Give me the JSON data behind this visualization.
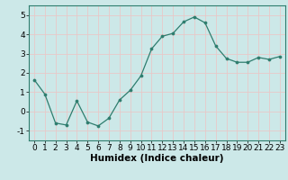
{
  "x": [
    0,
    1,
    2,
    3,
    4,
    5,
    6,
    7,
    8,
    9,
    10,
    11,
    12,
    13,
    14,
    15,
    16,
    17,
    18,
    19,
    20,
    21,
    22,
    23
  ],
  "y": [
    1.65,
    0.9,
    -0.6,
    -0.7,
    0.55,
    -0.55,
    -0.75,
    -0.35,
    0.6,
    1.1,
    1.85,
    3.25,
    3.9,
    4.05,
    4.65,
    4.9,
    4.6,
    3.4,
    2.75,
    2.55,
    2.55,
    2.8,
    2.7,
    2.85
  ],
  "line_color": "#2e7d6e",
  "marker_color": "#2e7d6e",
  "bg_color": "#cce8e8",
  "grid_color": "#e8c8c8",
  "xlabel": "Humidex (Indice chaleur)",
  "xlim": [
    -0.5,
    23.5
  ],
  "ylim": [
    -1.5,
    5.5
  ],
  "yticks": [
    -1,
    0,
    1,
    2,
    3,
    4,
    5
  ],
  "xticks": [
    0,
    1,
    2,
    3,
    4,
    5,
    6,
    7,
    8,
    9,
    10,
    11,
    12,
    13,
    14,
    15,
    16,
    17,
    18,
    19,
    20,
    21,
    22,
    23
  ],
  "tick_fontsize": 6.5,
  "xlabel_fontsize": 7.5
}
